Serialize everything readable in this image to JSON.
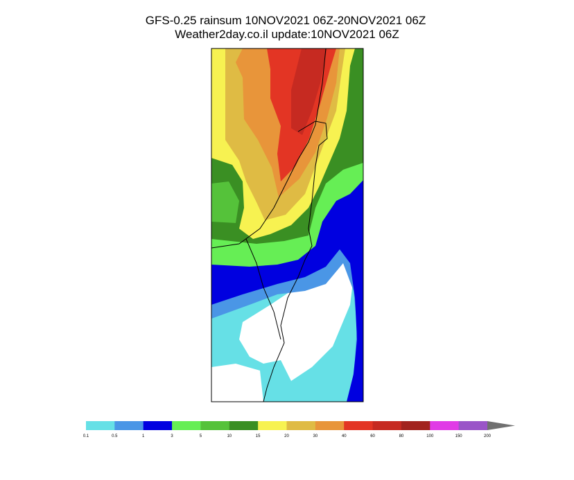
{
  "title": [
    "GFS-0.25 rainsum 10NOV2021 06Z-20NOV2021 06Z",
    "Weather2day.co.il update:10NOV2021 06Z"
  ],
  "colorbar": {
    "levels": [
      0.1,
      0.5,
      1,
      3,
      5,
      10,
      15,
      20,
      30,
      40,
      60,
      80,
      100,
      150,
      200
    ],
    "colors": [
      "#66e0e6",
      "#4a96e6",
      "#0000e0",
      "#66ee55",
      "#55c23a",
      "#3a8f23",
      "#f7f251",
      "#dfbb44",
      "#e8953a",
      "#e33524",
      "#c62a21",
      "#a2231e",
      "#e03be6",
      "#9a55c8"
    ],
    "extend_color": "#707070"
  }
}
